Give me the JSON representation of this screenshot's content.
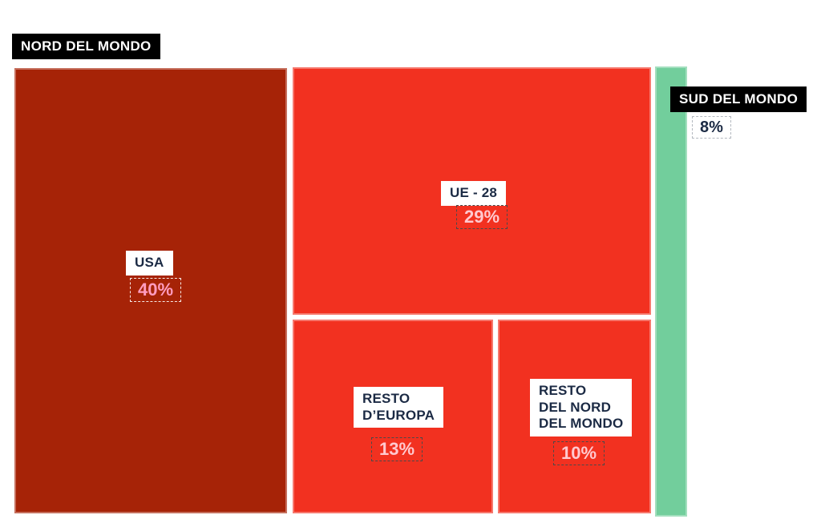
{
  "legend_labels": {
    "nord": "NORD DEL MONDO",
    "sud": "SUD DEL MONDO"
  },
  "blocks": {
    "usa": {
      "name": "USA",
      "pct": "40%"
    },
    "ue28": {
      "name": "UE - 28",
      "pct": "29%"
    },
    "resto_europa": {
      "name": "RESTO\nD’EUROPA",
      "pct": "13%"
    },
    "resto_nord": {
      "name": "RESTO\nDEL NORD\nDEL MONDO",
      "pct": "10%"
    },
    "sud": {
      "pct": "8%"
    }
  },
  "colors": {
    "usa_block": "#a62307",
    "nord_blocks": "#f23120",
    "sud_block": "#72ce9c",
    "name_text": "#1b2a44",
    "pct_text_on_dark": "#ff9cc0",
    "pct_text_on_bright": "#ffc9cf",
    "group_label_bg": "#000000",
    "group_label_text": "#ffffff"
  },
  "chart_data": {
    "type": "treemap",
    "unit": "percent",
    "title": "",
    "groups": [
      {
        "name": "NORD DEL MONDO",
        "total": 92,
        "items": [
          {
            "label": "USA",
            "value": 40,
            "color": "#a62307"
          },
          {
            "label": "UE - 28",
            "value": 29,
            "color": "#f23120"
          },
          {
            "label": "RESTO D’EUROPA",
            "value": 13,
            "color": "#f23120"
          },
          {
            "label": "RESTO DEL NORD DEL MONDO",
            "value": 10,
            "color": "#f23120"
          }
        ]
      },
      {
        "name": "SUD DEL MONDO",
        "total": 8,
        "items": [
          {
            "label": "SUD DEL MONDO",
            "value": 8,
            "color": "#72ce9c"
          }
        ]
      }
    ],
    "layout_hints": {
      "legend_position": "floating-black-boxes",
      "grid": false
    }
  }
}
